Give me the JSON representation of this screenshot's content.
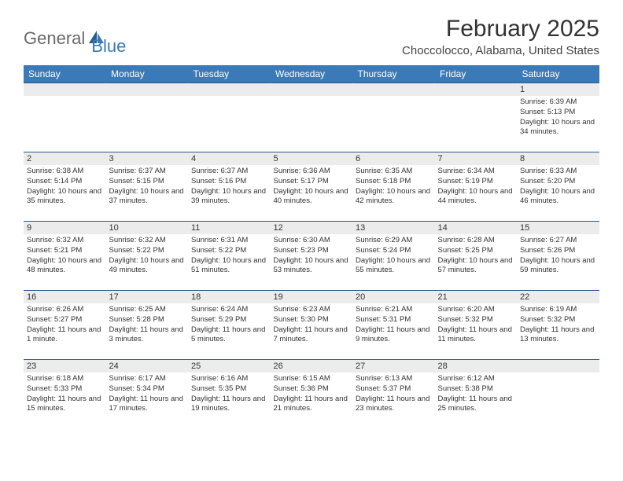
{
  "logo": {
    "text1": "General",
    "text2": "Blue"
  },
  "title": "February 2025",
  "location": "Choccolocco, Alabama, United States",
  "colors": {
    "header_bg": "#3a7ab8",
    "header_text": "#ffffff",
    "daynum_bg": "#ececec",
    "row_border": "#2a5a8a",
    "logo_gray": "#6a6a6a",
    "logo_blue": "#3a7ab8"
  },
  "weekdays": [
    "Sunday",
    "Monday",
    "Tuesday",
    "Wednesday",
    "Thursday",
    "Friday",
    "Saturday"
  ],
  "weeks": [
    [
      null,
      null,
      null,
      null,
      null,
      null,
      {
        "n": "1",
        "sunrise": "Sunrise: 6:39 AM",
        "sunset": "Sunset: 5:13 PM",
        "daylight": "Daylight: 10 hours and 34 minutes."
      }
    ],
    [
      {
        "n": "2",
        "sunrise": "Sunrise: 6:38 AM",
        "sunset": "Sunset: 5:14 PM",
        "daylight": "Daylight: 10 hours and 35 minutes."
      },
      {
        "n": "3",
        "sunrise": "Sunrise: 6:37 AM",
        "sunset": "Sunset: 5:15 PM",
        "daylight": "Daylight: 10 hours and 37 minutes."
      },
      {
        "n": "4",
        "sunrise": "Sunrise: 6:37 AM",
        "sunset": "Sunset: 5:16 PM",
        "daylight": "Daylight: 10 hours and 39 minutes."
      },
      {
        "n": "5",
        "sunrise": "Sunrise: 6:36 AM",
        "sunset": "Sunset: 5:17 PM",
        "daylight": "Daylight: 10 hours and 40 minutes."
      },
      {
        "n": "6",
        "sunrise": "Sunrise: 6:35 AM",
        "sunset": "Sunset: 5:18 PM",
        "daylight": "Daylight: 10 hours and 42 minutes."
      },
      {
        "n": "7",
        "sunrise": "Sunrise: 6:34 AM",
        "sunset": "Sunset: 5:19 PM",
        "daylight": "Daylight: 10 hours and 44 minutes."
      },
      {
        "n": "8",
        "sunrise": "Sunrise: 6:33 AM",
        "sunset": "Sunset: 5:20 PM",
        "daylight": "Daylight: 10 hours and 46 minutes."
      }
    ],
    [
      {
        "n": "9",
        "sunrise": "Sunrise: 6:32 AM",
        "sunset": "Sunset: 5:21 PM",
        "daylight": "Daylight: 10 hours and 48 minutes."
      },
      {
        "n": "10",
        "sunrise": "Sunrise: 6:32 AM",
        "sunset": "Sunset: 5:22 PM",
        "daylight": "Daylight: 10 hours and 49 minutes."
      },
      {
        "n": "11",
        "sunrise": "Sunrise: 6:31 AM",
        "sunset": "Sunset: 5:22 PM",
        "daylight": "Daylight: 10 hours and 51 minutes."
      },
      {
        "n": "12",
        "sunrise": "Sunrise: 6:30 AM",
        "sunset": "Sunset: 5:23 PM",
        "daylight": "Daylight: 10 hours and 53 minutes."
      },
      {
        "n": "13",
        "sunrise": "Sunrise: 6:29 AM",
        "sunset": "Sunset: 5:24 PM",
        "daylight": "Daylight: 10 hours and 55 minutes."
      },
      {
        "n": "14",
        "sunrise": "Sunrise: 6:28 AM",
        "sunset": "Sunset: 5:25 PM",
        "daylight": "Daylight: 10 hours and 57 minutes."
      },
      {
        "n": "15",
        "sunrise": "Sunrise: 6:27 AM",
        "sunset": "Sunset: 5:26 PM",
        "daylight": "Daylight: 10 hours and 59 minutes."
      }
    ],
    [
      {
        "n": "16",
        "sunrise": "Sunrise: 6:26 AM",
        "sunset": "Sunset: 5:27 PM",
        "daylight": "Daylight: 11 hours and 1 minute."
      },
      {
        "n": "17",
        "sunrise": "Sunrise: 6:25 AM",
        "sunset": "Sunset: 5:28 PM",
        "daylight": "Daylight: 11 hours and 3 minutes."
      },
      {
        "n": "18",
        "sunrise": "Sunrise: 6:24 AM",
        "sunset": "Sunset: 5:29 PM",
        "daylight": "Daylight: 11 hours and 5 minutes."
      },
      {
        "n": "19",
        "sunrise": "Sunrise: 6:23 AM",
        "sunset": "Sunset: 5:30 PM",
        "daylight": "Daylight: 11 hours and 7 minutes."
      },
      {
        "n": "20",
        "sunrise": "Sunrise: 6:21 AM",
        "sunset": "Sunset: 5:31 PM",
        "daylight": "Daylight: 11 hours and 9 minutes."
      },
      {
        "n": "21",
        "sunrise": "Sunrise: 6:20 AM",
        "sunset": "Sunset: 5:32 PM",
        "daylight": "Daylight: 11 hours and 11 minutes."
      },
      {
        "n": "22",
        "sunrise": "Sunrise: 6:19 AM",
        "sunset": "Sunset: 5:32 PM",
        "daylight": "Daylight: 11 hours and 13 minutes."
      }
    ],
    [
      {
        "n": "23",
        "sunrise": "Sunrise: 6:18 AM",
        "sunset": "Sunset: 5:33 PM",
        "daylight": "Daylight: 11 hours and 15 minutes."
      },
      {
        "n": "24",
        "sunrise": "Sunrise: 6:17 AM",
        "sunset": "Sunset: 5:34 PM",
        "daylight": "Daylight: 11 hours and 17 minutes."
      },
      {
        "n": "25",
        "sunrise": "Sunrise: 6:16 AM",
        "sunset": "Sunset: 5:35 PM",
        "daylight": "Daylight: 11 hours and 19 minutes."
      },
      {
        "n": "26",
        "sunrise": "Sunrise: 6:15 AM",
        "sunset": "Sunset: 5:36 PM",
        "daylight": "Daylight: 11 hours and 21 minutes."
      },
      {
        "n": "27",
        "sunrise": "Sunrise: 6:13 AM",
        "sunset": "Sunset: 5:37 PM",
        "daylight": "Daylight: 11 hours and 23 minutes."
      },
      {
        "n": "28",
        "sunrise": "Sunrise: 6:12 AM",
        "sunset": "Sunset: 5:38 PM",
        "daylight": "Daylight: 11 hours and 25 minutes."
      },
      null
    ]
  ]
}
